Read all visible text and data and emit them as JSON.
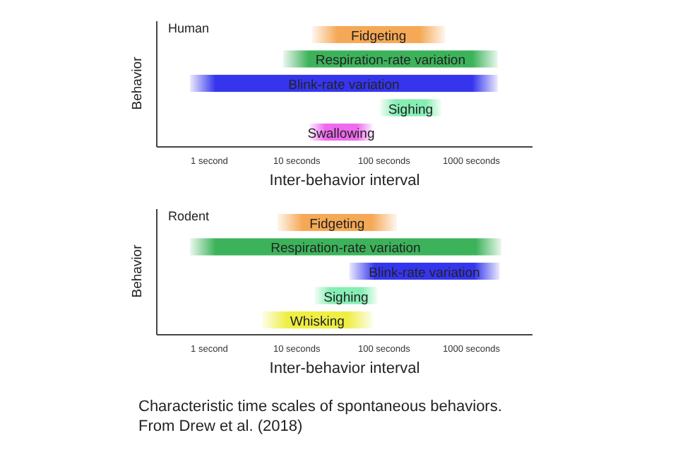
{
  "chart_data": [
    {
      "type": "bar",
      "orientation": "horizontal",
      "log": "x",
      "title": "Human",
      "xlabel": "Inter-behavior interval",
      "ylabel": "Behavior",
      "categories": [
        "Fidgeting",
        "Respiration-rate variation",
        "Blink-rate variation",
        "Sighing",
        "Swallowing"
      ],
      "base": [
        15,
        7,
        0.6,
        90,
        14
      ],
      "values": [
        485,
        1993,
        1999.4,
        360,
        60
      ],
      "colors": [
        "#f5a855",
        "#3cb35a",
        "#3535ee",
        "#86eeb4",
        "#ee6aee"
      ],
      "xlim": [
        0.25,
        5000
      ],
      "xticks": [
        {
          "value": 1,
          "label": "1 second"
        },
        {
          "value": 10,
          "label": "10 seconds"
        },
        {
          "value": 100,
          "label": "100 seconds"
        },
        {
          "value": 1000,
          "label": "1000 seconds"
        }
      ],
      "grid": false
    },
    {
      "type": "bar",
      "orientation": "horizontal",
      "log": "x",
      "title": "Rodent",
      "xlabel": "Inter-behavior interval",
      "ylabel": "Behavior",
      "categories": [
        "Fidgeting",
        "Respiration-rate variation",
        "Blink-rate variation",
        "Sighing",
        "Whisking"
      ],
      "base": [
        6,
        0.6,
        40,
        16,
        4
      ],
      "values": [
        134,
        2199.4,
        2060,
        68,
        70
      ],
      "colors": [
        "#f5a855",
        "#3cb35a",
        "#3535ee",
        "#86eeb4",
        "#eeee44"
      ],
      "xlim": [
        0.25,
        5000
      ],
      "xticks": [
        {
          "value": 1,
          "label": "1 second"
        },
        {
          "value": 10,
          "label": "10 seconds"
        },
        {
          "value": 100,
          "label": "100 seconds"
        },
        {
          "value": 1000,
          "label": "1000 seconds"
        }
      ],
      "grid": false,
      "annotations": [
        "Characteristic time scales of spontaneous behaviors.",
        "From Drew et al. (2018)"
      ]
    }
  ]
}
